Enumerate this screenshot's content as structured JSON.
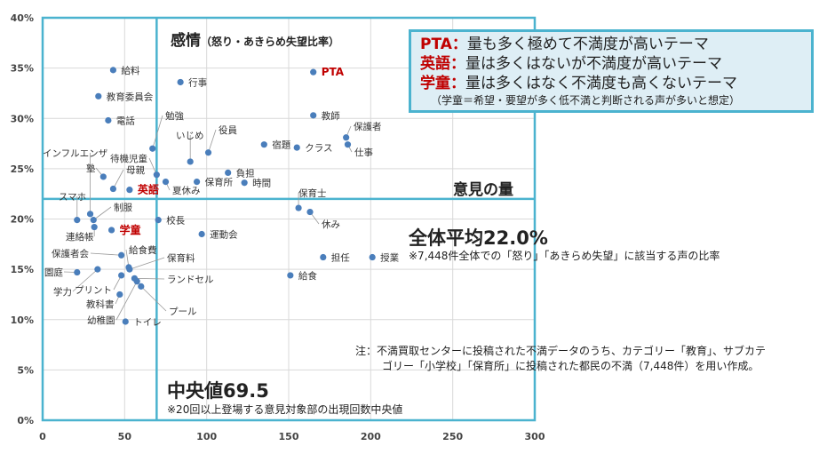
{
  "chart_data": {
    "type": "scatter",
    "title": "感情",
    "title_sub": "（怒り・あきらめ失望比率）",
    "xlabel": "意見の量",
    "ylabel": "感情（怒り・あきらめ失望比率）",
    "xlim": [
      0,
      300
    ],
    "ylim": [
      0,
      40
    ],
    "x_ticks": [
      "0",
      "50",
      "100",
      "150",
      "200",
      "250",
      "300"
    ],
    "y_ticks": [
      "0%",
      "5%",
      "10%",
      "15%",
      "20%",
      "25%",
      "30%",
      "35%",
      "40%"
    ],
    "grid": true,
    "highlight_color": "#c00000",
    "point_color": "#4a7ebb",
    "reference_line_color": "#4bb3cf",
    "mean_line": {
      "value": 22.0,
      "label": "全体平均22.0%",
      "note": "※7,448件全体での「怒り」「あきらめ失望」に該当する声の比率"
    },
    "median_line": {
      "value": 69.5,
      "label": "中央値69.5",
      "note": "※20回以上登場する意見対象部の出現回数中央値"
    },
    "points": [
      {
        "label": "給料",
        "x": 43,
        "y": 34.8
      },
      {
        "label": "行事",
        "x": 84,
        "y": 33.6
      },
      {
        "label": "教育委員会",
        "x": 34,
        "y": 32.2
      },
      {
        "label": "電話",
        "x": 40,
        "y": 29.8
      },
      {
        "label": "勉強",
        "x": 67,
        "y": 27.0
      },
      {
        "label": "いじめ",
        "x": 90,
        "y": 25.7
      },
      {
        "label": "役員",
        "x": 101,
        "y": 26.6
      },
      {
        "label": "宿題",
        "x": 135,
        "y": 27.4
      },
      {
        "label": "クラス",
        "x": 155,
        "y": 27.1
      },
      {
        "label": "PTA",
        "x": 165,
        "y": 34.6,
        "highlight": true
      },
      {
        "label": "教師",
        "x": 165,
        "y": 30.3
      },
      {
        "label": "保護者",
        "x": 185,
        "y": 28.1
      },
      {
        "label": "仕事",
        "x": 186,
        "y": 27.4
      },
      {
        "label": "負担",
        "x": 113,
        "y": 24.6
      },
      {
        "label": "保育所",
        "x": 94,
        "y": 23.7
      },
      {
        "label": "時間",
        "x": 123,
        "y": 23.6
      },
      {
        "label": "夏休み",
        "x": 75,
        "y": 23.7
      },
      {
        "label": "待機児童",
        "x": 69.5,
        "y": 24.4
      },
      {
        "label": "塾",
        "x": 37,
        "y": 24.2
      },
      {
        "label": "母親",
        "x": 43,
        "y": 23.0
      },
      {
        "label": "英語",
        "x": 53,
        "y": 22.9,
        "highlight": true
      },
      {
        "label": "インフルエンザ",
        "x": 29,
        "y": 20.5
      },
      {
        "label": "スマホ",
        "x": 21,
        "y": 19.9
      },
      {
        "label": "制服",
        "x": 31,
        "y": 19.9
      },
      {
        "label": "連絡帳",
        "x": 31.5,
        "y": 19.2
      },
      {
        "label": "学童",
        "x": 42,
        "y": 18.9,
        "highlight": true
      },
      {
        "label": "校長",
        "x": 70.5,
        "y": 19.9
      },
      {
        "label": "運動会",
        "x": 97,
        "y": 18.5
      },
      {
        "label": "保護者会",
        "x": 48,
        "y": 16.4
      },
      {
        "label": "給食費",
        "x": 52.5,
        "y": 15.2
      },
      {
        "label": "保育料",
        "x": 53,
        "y": 15.0
      },
      {
        "label": "園庭",
        "x": 21,
        "y": 14.7
      },
      {
        "label": "学力",
        "x": 33.5,
        "y": 15.0
      },
      {
        "label": "プリント",
        "x": 48,
        "y": 14.4
      },
      {
        "label": "教科書",
        "x": 47,
        "y": 12.5
      },
      {
        "label": "ランドセル",
        "x": 56,
        "y": 14.1
      },
      {
        "label": "幼稚園",
        "x": 57.5,
        "y": 13.8
      },
      {
        "label": "プール",
        "x": 60,
        "y": 13.3
      },
      {
        "label": "トイレ",
        "x": 50.5,
        "y": 9.8
      },
      {
        "label": "保育士",
        "x": 156,
        "y": 21.1
      },
      {
        "label": "休み",
        "x": 163,
        "y": 20.7
      },
      {
        "label": "担任",
        "x": 171,
        "y": 16.2
      },
      {
        "label": "授業",
        "x": 201,
        "y": 16.2
      },
      {
        "label": "給食",
        "x": 151,
        "y": 14.4
      }
    ]
  },
  "legend_box": {
    "lines": [
      {
        "key": "PTA：",
        "text": "量も多く極めて不満度が高いテーマ"
      },
      {
        "key": "英語：",
        "text": "量は多くはないが不満度が高いテーマ"
      },
      {
        "key": "学童：",
        "text": "量は多くはなく不満度も高くないテーマ"
      }
    ],
    "sub": "（学童＝希望・要望が多く低不満と判断される声が多いと想定）"
  },
  "notes": {
    "line1": "注：不満買取センターに投稿された不満データのうち、カテゴリー「教育」、サブカテ",
    "line2": "ゴリー「小学校」「保育所」に投稿された都民の不満（7,448件）を用い作成。"
  }
}
